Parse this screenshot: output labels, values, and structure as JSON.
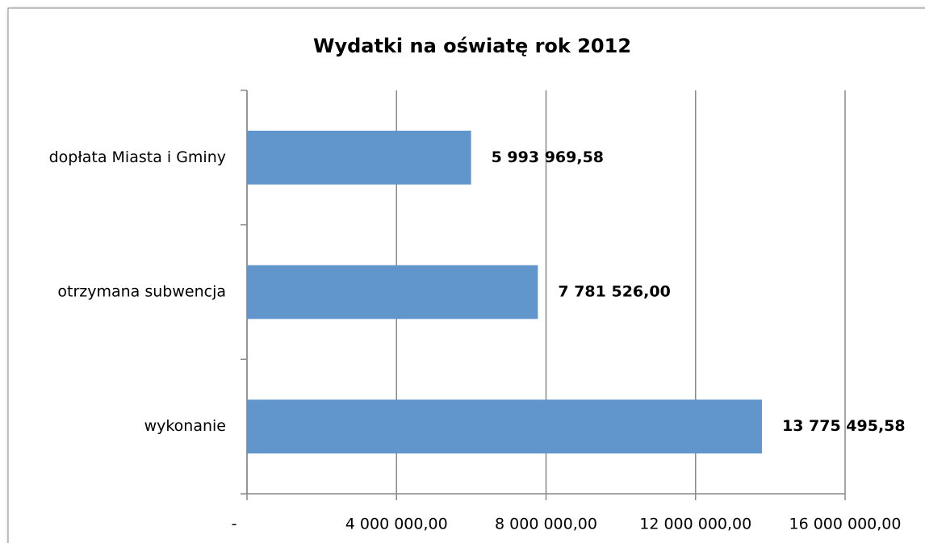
{
  "chart_data": {
    "type": "bar",
    "orientation": "horizontal",
    "title": "Wydatki na oświatę rok 2012",
    "categories": [
      "dopłata Miasta i Gminy",
      "otrzymana subwencja",
      "wykonanie"
    ],
    "values": [
      5993969.58,
      7781526.0,
      13775495.58
    ],
    "value_labels": [
      "5 993 969,58",
      "7 781 526,00",
      "13 775 495,58"
    ],
    "color": "#6196cc",
    "xlim": [
      0,
      16000000
    ],
    "xticks": [
      {
        "value": 0,
        "label": "-"
      },
      {
        "value": 4000000,
        "label": "4 000 000,00"
      },
      {
        "value": 8000000,
        "label": "8 000 000,00"
      },
      {
        "value": 12000000,
        "label": "12 000 000,00"
      },
      {
        "value": 16000000,
        "label": "16 000 000,00"
      }
    ],
    "grid": true
  }
}
